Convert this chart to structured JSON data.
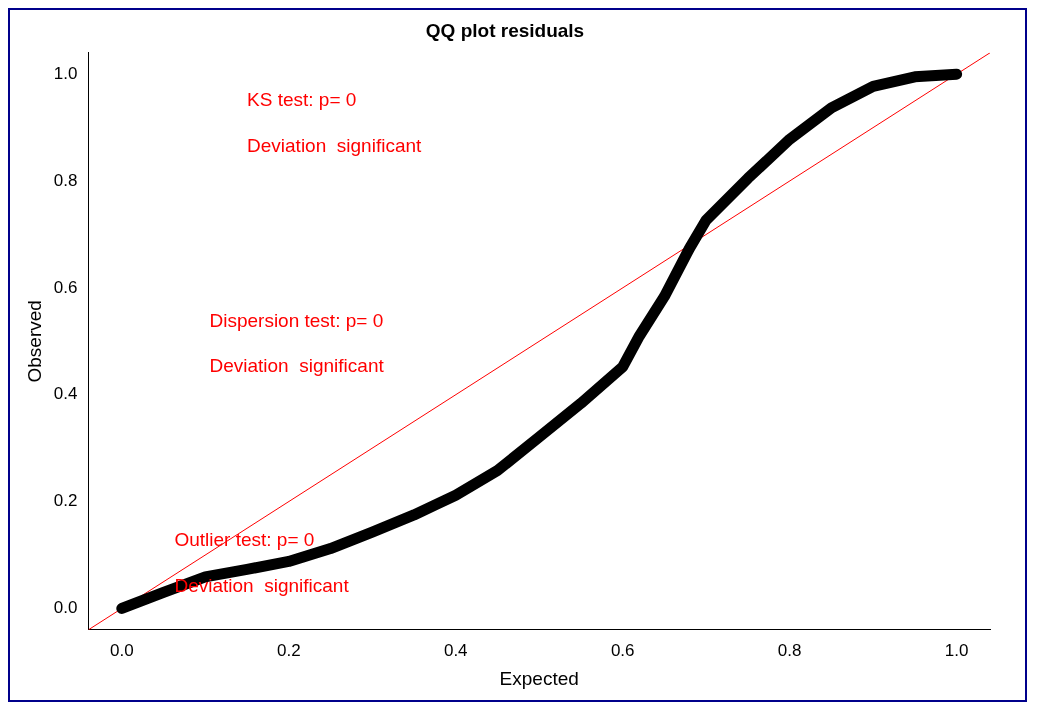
{
  "chart_data": {
    "type": "line",
    "title": "QQ plot residuals",
    "xlabel": "Expected",
    "ylabel": "Observed",
    "xlim": [
      -0.04,
      1.04
    ],
    "ylim": [
      -0.04,
      1.04
    ],
    "xticks": [
      {
        "value": 0,
        "label": "0.0"
      },
      {
        "value": 0.2,
        "label": "0.2"
      },
      {
        "value": 0.4,
        "label": "0.4"
      },
      {
        "value": 0.6,
        "label": "0.6"
      },
      {
        "value": 0.8,
        "label": "0.8"
      },
      {
        "value": 1,
        "label": "1.0"
      }
    ],
    "yticks": [
      {
        "value": 0,
        "label": "0.0"
      },
      {
        "value": 0.2,
        "label": "0.2"
      },
      {
        "value": 0.4,
        "label": "0.4"
      },
      {
        "value": 0.6,
        "label": "0.6"
      },
      {
        "value": 0.8,
        "label": "0.8"
      },
      {
        "value": 1,
        "label": "1.0"
      }
    ],
    "grid": false,
    "legend": false,
    "marker": "none",
    "line_style": "solid",
    "series": [
      {
        "color": "#000000",
        "x": [
          0,
          0.05,
          0.1,
          0.15,
          0.2,
          0.25,
          0.3,
          0.35,
          0.4,
          0.45,
          0.5,
          0.55,
          0.6,
          0.62,
          0.65,
          0.68,
          0.7,
          0.75,
          0.8,
          0.85,
          0.9,
          0.95,
          1.0
        ],
        "values": [
          0,
          0.03,
          0.059,
          0.073,
          0.088,
          0.112,
          0.143,
          0.175,
          0.212,
          0.258,
          0.321,
          0.384,
          0.452,
          0.51,
          0.584,
          0.674,
          0.727,
          0.805,
          0.878,
          0.937,
          0.977,
          0.995,
          1.0
        ]
      },
      {
        "type": "line",
        "color": "#ff0000",
        "x": [
          -0.04,
          1.04
        ],
        "values": [
          -0.04,
          1.04
        ]
      }
    ],
    "annotations": [
      "KS test: p= 0",
      "Deviation  significant",
      "Dispersion test: p= 0",
      "Deviation  significant",
      "Outlier test: p= 0",
      "Deviation  significant"
    ]
  }
}
